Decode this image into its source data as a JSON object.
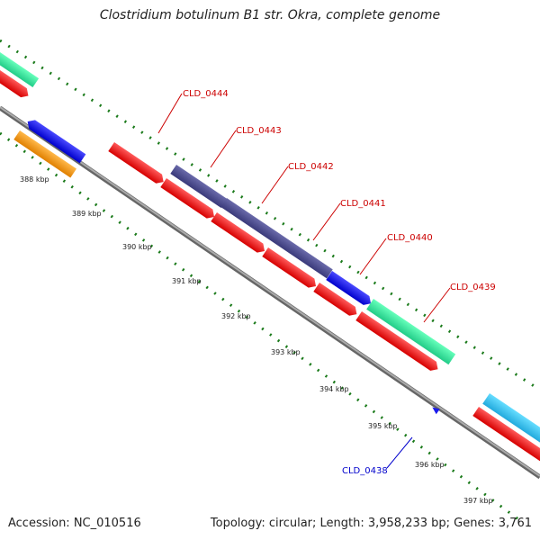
{
  "title": "Clostridium botulinum B1 str. Okra, complete genome",
  "footer": {
    "accession": "Accession: NC_010516",
    "stats": "Topology: circular; Length: 3,958,233 bp; Genes: 3,761"
  },
  "kbp_labels": [
    "388 kbp",
    "389 kbp",
    "390 kbp",
    "391 kbp",
    "392 kbp",
    "393 kbp",
    "394 kbp",
    "395 kbp",
    "396 kbp",
    "397 kbp"
  ],
  "gene_labels": [
    {
      "text": "CLD_0444",
      "color": "#cc0000"
    },
    {
      "text": "CLD_0443",
      "color": "#cc0000"
    },
    {
      "text": "CLD_0442",
      "color": "#cc0000"
    },
    {
      "text": "CLD_0441",
      "color": "#cc0000"
    },
    {
      "text": "CLD_0440",
      "color": "#cc0000"
    },
    {
      "text": "CLD_0439",
      "color": "#cc0000"
    },
    {
      "text": "CLD_0438",
      "color": "#0000cc"
    }
  ],
  "colors": {
    "cds": "#ff1a1a",
    "backbone": "#808080",
    "tick": "#1a7a1a",
    "green_feature": "#33ee99",
    "purple_feature": "#4b4b8f",
    "blue_feature": "#1a1aee",
    "orange_feature": "#ff9900",
    "cyan_feature": "#33ccee"
  }
}
